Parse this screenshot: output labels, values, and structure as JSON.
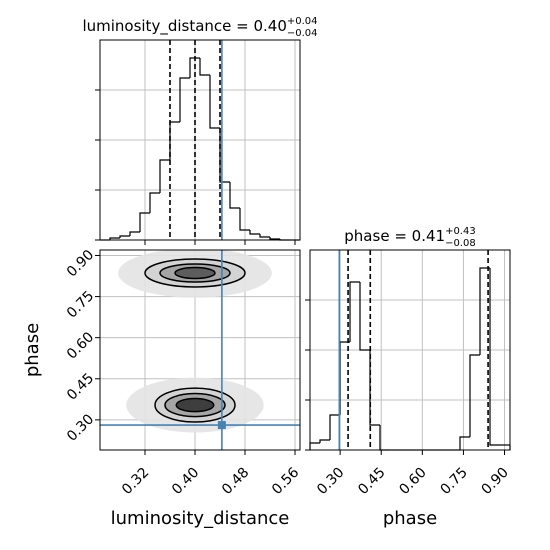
{
  "chart_data": [
    {
      "type": "histogram",
      "title": "luminosity_distance = 0.40",
      "title_sup": "+0.04",
      "title_sub": "−0.04",
      "bins": [
        0.248,
        0.264,
        0.28,
        0.296,
        0.312,
        0.328,
        0.344,
        0.36,
        0.376,
        0.392,
        0.408,
        0.424,
        0.44,
        0.456,
        0.472,
        0.488,
        0.504,
        0.52,
        0.536,
        0.552,
        0.568
      ],
      "counts": [
        0,
        2,
        4,
        8,
        27,
        47,
        80,
        118,
        162,
        182,
        165,
        112,
        58,
        32,
        10,
        6,
        3,
        1,
        0,
        0
      ],
      "color": "#000000",
      "xlim": [
        0.248,
        0.568
      ],
      "xticks": [
        0.32,
        0.4,
        0.48,
        0.56
      ],
      "xtick_labels": false,
      "ylim": [
        0,
        200
      ],
      "yticks": [
        0,
        50,
        100,
        150
      ],
      "ytick_labels": false,
      "quantiles": [
        0.36,
        0.4,
        0.44
      ],
      "truth": 0.443,
      "truth_color": "#4682b4",
      "grid": true
    },
    {
      "type": "histogram2d",
      "xlabel": "luminosity_distance",
      "ylabel": "phase",
      "xlim": [
        0.248,
        0.568
      ],
      "ylim": [
        0.19,
        0.92
      ],
      "xticks": [
        0.32,
        {
          "value": 0.4,
          "label": "0.40"
        },
        0.48,
        0.56
      ],
      "xtick_labels": true,
      "yticks": [
        {
          "value": 0.3,
          "label": "0.30"
        },
        0.45,
        {
          "value": 0.6,
          "label": "0.60"
        },
        0.75,
        {
          "value": 0.9,
          "label": "0.90"
        }
      ],
      "ytick_labels": true,
      "truth": [
        0.443,
        0.281
      ],
      "truth_color": "#4682b4",
      "grid": true,
      "clusters": [
        {
          "center": [
            0.4,
            0.836
          ],
          "levels": [
            {
              "rx": 0.123,
              "ry": 0.09,
              "fill": "#e3e3e3",
              "stroke": "none"
            },
            {
              "rx": 0.08,
              "ry": 0.051,
              "fill": "#d0d0d0",
              "stroke": "#000000"
            },
            {
              "rx": 0.056,
              "ry": 0.033,
              "fill": "#a0a0a0",
              "stroke": "#000000"
            },
            {
              "rx": 0.032,
              "ry": 0.02,
              "fill": "#555555",
              "stroke": "#000000"
            }
          ]
        },
        {
          "center": [
            0.4,
            0.354
          ],
          "levels": [
            {
              "rx": 0.11,
              "ry": 0.1,
              "fill": "#e3e3e3",
              "stroke": "none"
            },
            {
              "rx": 0.064,
              "ry": 0.062,
              "fill": "#d0d0d0",
              "stroke": "#000000"
            },
            {
              "rx": 0.048,
              "ry": 0.042,
              "fill": "#a0a0a0",
              "stroke": "#000000"
            },
            {
              "rx": 0.03,
              "ry": 0.024,
              "fill": "#333333",
              "stroke": "#000000"
            }
          ]
        }
      ]
    },
    {
      "type": "histogram",
      "title": "phase = 0.41",
      "title_sup": "+0.43",
      "title_sub": "−0.08",
      "xlabel": "phase",
      "bins": [
        0.19,
        0.2265,
        0.263,
        0.2995,
        0.336,
        0.3725,
        0.409,
        0.4455,
        0.482,
        0.5185,
        0.555,
        0.5915,
        0.628,
        0.6645,
        0.701,
        0.7375,
        0.774,
        0.8105,
        0.847,
        0.8835,
        0.92
      ],
      "counts": [
        7,
        10,
        35,
        108,
        168,
        100,
        25,
        0,
        0,
        0,
        0,
        0,
        0,
        0,
        0,
        13,
        95,
        182,
        5,
        5
      ],
      "color": "#000000",
      "xlim": [
        0.19,
        0.92
      ],
      "xticks": [
        {
          "value": 0.3,
          "label": "0.30"
        },
        0.45,
        {
          "value": 0.6,
          "label": "0.60"
        },
        0.75,
        {
          "value": 0.9,
          "label": "0.90"
        }
      ],
      "xtick_labels": true,
      "ylim": [
        0,
        200
      ],
      "yticks": [
        0,
        50,
        100,
        150
      ],
      "ytick_labels": false,
      "quantiles": [
        0.329,
        0.41,
        0.84
      ],
      "truth": 0.297,
      "truth_color": "#4682b4",
      "grid": true
    }
  ]
}
